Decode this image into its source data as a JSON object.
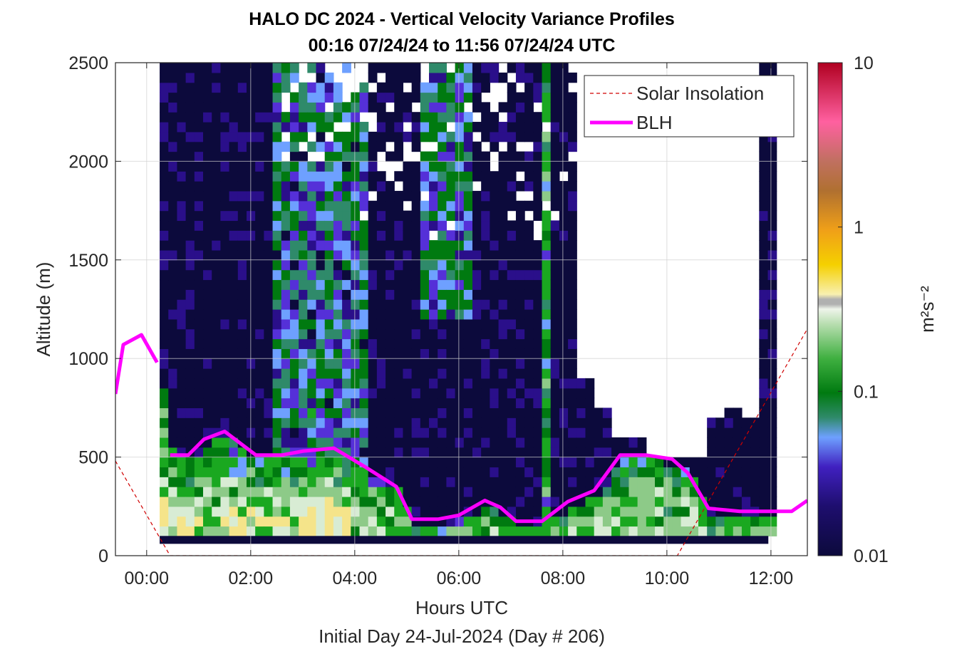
{
  "chart_data": {
    "type": "heatmap",
    "title": "HALO DC 2024 - Vertical Velocity Variance Profiles",
    "subtitle": "00:16 07/24/24 to 11:56 07/24/24  UTC",
    "xlabel": "Hours UTC",
    "xlabel2": "Initial Day 24-Jul-2024 (Day # 206)",
    "ylabel": "Altitude (m)",
    "colorbar_label": "m²s⁻²",
    "colorbar_scale": "log",
    "colorbar_range": [
      0.01,
      10
    ],
    "colorbar_ticks": [
      "0.01",
      "0.1",
      "1",
      "10"
    ],
    "colorbar_tick_values": [
      0.01,
      0.1,
      1,
      10
    ],
    "xlim": [
      -0.6,
      12.7
    ],
    "ylim": [
      0,
      2500
    ],
    "x_ticks": [
      "00:00",
      "02:00",
      "04:00",
      "06:00",
      "08:00",
      "10:00",
      "12:00"
    ],
    "x_tick_values": [
      0,
      2,
      4,
      6,
      8,
      10,
      12
    ],
    "y_ticks": [
      "0",
      "500",
      "1000",
      "1500",
      "2000",
      "2500"
    ],
    "y_tick_values": [
      0,
      500,
      1000,
      1500,
      2000,
      2500
    ],
    "grid": true,
    "legend_position": "top-right",
    "colors": {
      "blh": "#ff00ff",
      "solar": "#d00000",
      "background": "#ffffff",
      "axes": "#262626"
    },
    "series": [
      {
        "name": "Solar Insolation",
        "style": "dashed",
        "x": [
          -0.6,
          0.45,
          10.2,
          12.7
        ],
        "y": [
          480,
          0,
          0,
          1150
        ]
      },
      {
        "name": "BLH",
        "style": "solid",
        "x": [
          -0.6,
          -0.45,
          -0.1,
          0.2,
          0.45,
          0.8,
          1.1,
          1.5,
          2.1,
          2.6,
          3.0,
          3.6,
          4.2,
          4.8,
          5.1,
          5.6,
          6.0,
          6.5,
          6.8,
          7.1,
          7.6,
          8.1,
          8.6,
          9.1,
          9.6,
          10.1,
          10.4,
          10.8,
          11.4,
          12.0,
          12.4,
          12.7
        ],
        "y": [
          820,
          1070,
          1120,
          980,
          510,
          510,
          590,
          630,
          510,
          510,
          530,
          545,
          450,
          350,
          185,
          185,
          205,
          280,
          245,
          175,
          175,
          275,
          330,
          510,
          510,
          490,
          420,
          240,
          225,
          225,
          225,
          280
        ]
      }
    ],
    "heatmap": {
      "x_start": 0.25,
      "x_end": 11.95,
      "x_step": 0.167,
      "y_start": 100,
      "y_end": 2500,
      "y_step": 50,
      "palette": [
        {
          "v": 0.01,
          "c": "#0c0a3c"
        },
        {
          "v": 0.02,
          "c": "#2a0f8a"
        },
        {
          "v": 0.03,
          "c": "#5530d8"
        },
        {
          "v": 0.045,
          "c": "#6ea0ff"
        },
        {
          "v": 0.06,
          "c": "#2f8a6a"
        },
        {
          "v": 0.08,
          "c": "#007a10"
        },
        {
          "v": 0.12,
          "c": "#1aa820"
        },
        {
          "v": 0.2,
          "c": "#8dca88"
        },
        {
          "v": 0.3,
          "c": "#d8ecd4"
        },
        {
          "v": 0.5,
          "c": "#f5e48a"
        },
        {
          "v": 0.8,
          "c": "#f0c000"
        },
        {
          "v": 1.2,
          "c": "#e88f20"
        },
        {
          "v": 2.0,
          "c": "#a0602a"
        },
        {
          "v": 3.5,
          "c": "#ff6fa0"
        },
        {
          "v": 10,
          "c": "#b00020"
        }
      ]
    }
  }
}
